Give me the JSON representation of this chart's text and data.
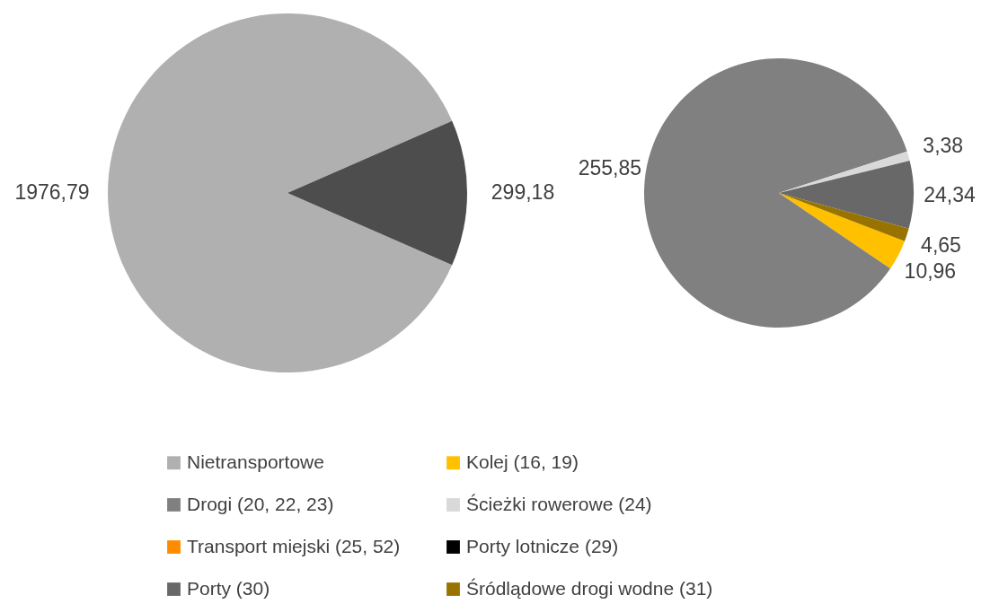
{
  "chart_data": [
    {
      "type": "pie",
      "categories": [
        "Nietransportowe",
        null
      ],
      "values": [
        1976.79,
        299.18
      ],
      "colors": [
        "#b0b0b0",
        "#4d4d4d"
      ],
      "value_labels": [
        "1976,79",
        "299,18"
      ]
    },
    {
      "type": "pie",
      "categories": [
        "Kolej (16, 19)",
        "Drogi (20, 22, 23)",
        "Ścieżki rowerowe (24)",
        "Transport miejski (25, 52)",
        "Porty lotnicze (29)",
        "Porty (30)",
        "Śródlądowe drogi wodne (31)"
      ],
      "values": [
        10.96,
        255.85,
        3.38,
        0,
        0,
        24.34,
        4.65
      ],
      "colors": [
        "#ffc000",
        "#808080",
        "#d9d9d9",
        "#ff8c00",
        "#000000",
        "#686868",
        "#997300"
      ],
      "value_labels": [
        "10,96",
        "255,85",
        "3,38",
        null,
        null,
        "24,34",
        "4,65"
      ],
      "legend": "bottom"
    }
  ]
}
